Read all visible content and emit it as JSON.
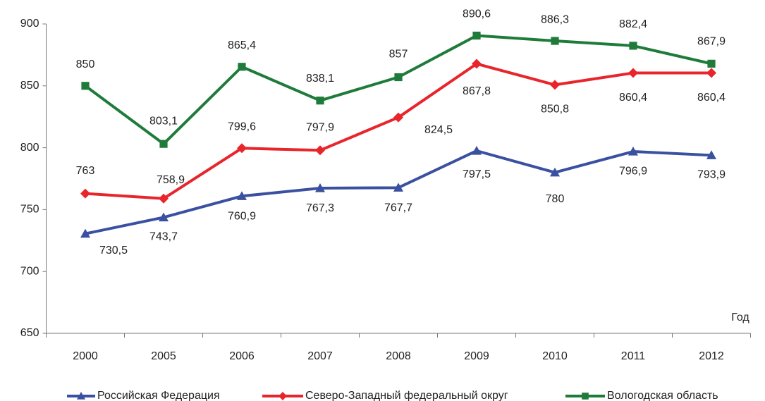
{
  "chart_data": {
    "type": "line",
    "x_label": "Год",
    "categories": [
      "2000",
      "2005",
      "2006",
      "2007",
      "2008",
      "2009",
      "2010",
      "2011",
      "2012"
    ],
    "series": [
      {
        "name": "Российская Федерация",
        "color": "#3a50a0",
        "marker": "triangle",
        "values": [
          730.5,
          743.7,
          760.9,
          767.3,
          767.7,
          797.5,
          780,
          796.9,
          793.9
        ],
        "value_labels": [
          "730,5",
          "743,7",
          "760,9",
          "767,3",
          "767,7",
          "797,5",
          "780",
          "796,9",
          "793,9"
        ]
      },
      {
        "name": "Северо-Западный федеральный округ",
        "color": "#e8252a",
        "marker": "diamond",
        "values": [
          763,
          758.9,
          799.6,
          797.9,
          824.5,
          867.8,
          850.8,
          860.4,
          860.4
        ],
        "value_labels": [
          "763",
          "758,9",
          "799,6",
          "797,9",
          "824,5",
          "867,8",
          "850,8",
          "860,4",
          "860,4"
        ]
      },
      {
        "name": "Вологодская область",
        "color": "#1e7b3a",
        "marker": "square",
        "values": [
          850,
          803.1,
          865.4,
          838.1,
          857,
          890.6,
          886.3,
          882.4,
          867.9
        ],
        "value_labels": [
          "850",
          "803,1",
          "865,4",
          "838,1",
          "857",
          "890,6",
          "886,3",
          "882,4",
          "867,9"
        ]
      }
    ],
    "ylim": [
      650,
      900
    ],
    "yticks": [
      650,
      700,
      750,
      800,
      850,
      900
    ],
    "grid": false,
    "legend": "bottom"
  }
}
